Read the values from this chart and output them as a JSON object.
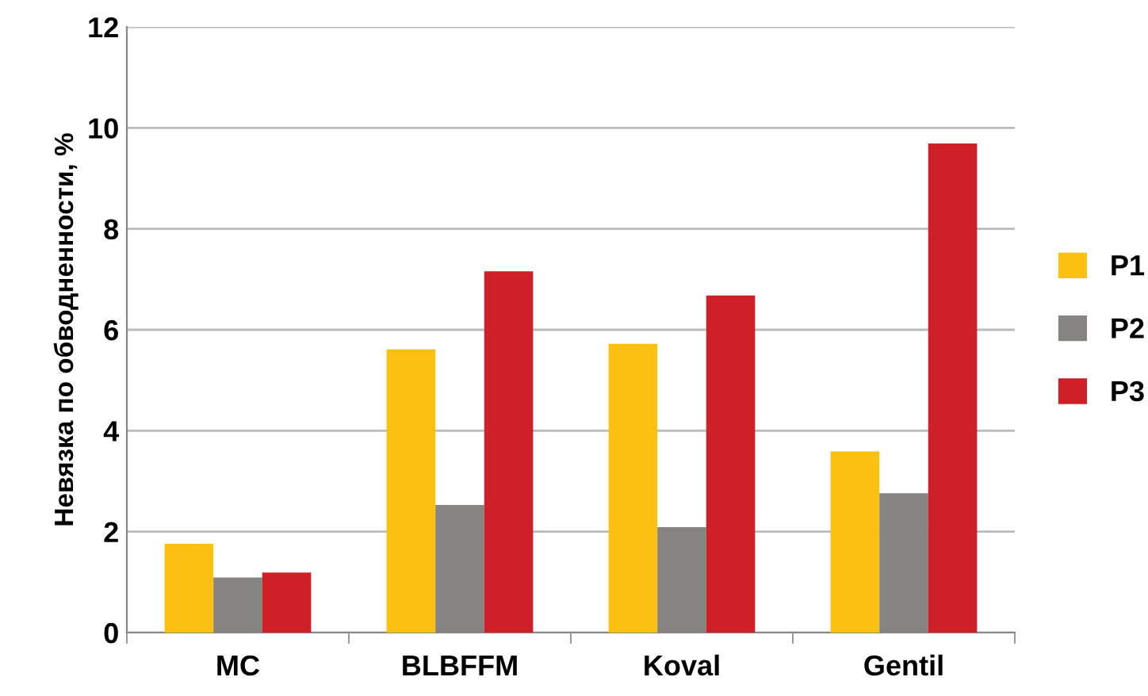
{
  "chart_data": {
    "type": "bar",
    "ylabel": "Невязка по обводненности, %",
    "categories": [
      "MC",
      "BLBFFM",
      "Koval",
      "Gentil"
    ],
    "series": [
      {
        "name": "P1",
        "color": "#fcc010",
        "values": [
          1.76,
          5.61,
          5.72,
          3.59
        ]
      },
      {
        "name": "P2",
        "color": "#858480",
        "values": [
          1.09,
          2.53,
          2.09,
          2.76
        ]
      },
      {
        "name": "P3",
        "color": "#cf2027",
        "values": [
          1.19,
          7.16,
          6.68,
          9.69
        ]
      }
    ],
    "ylim": [
      0,
      12
    ],
    "yticks": [
      0,
      2,
      4,
      6,
      8,
      10,
      12
    ],
    "grid": "y",
    "legend": "right"
  }
}
